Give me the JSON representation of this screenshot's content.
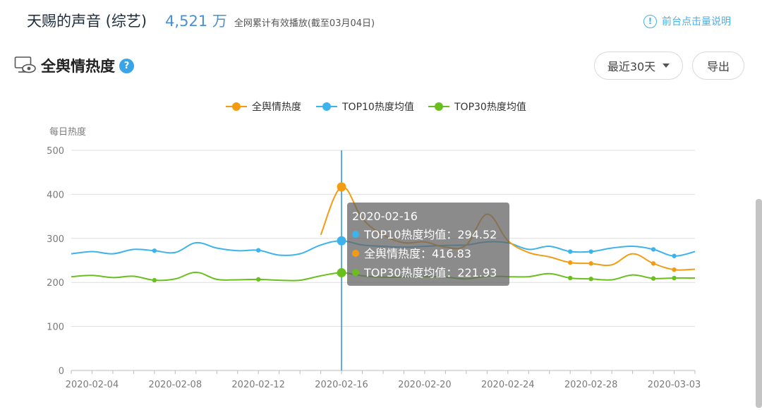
{
  "header": {
    "show_title": "天赐的声音 (综艺)",
    "play_count": "4,521 万",
    "play_note": "全网累计有效播放(截至03月04日)",
    "help_label": "前台点击量说明",
    "help_icon": "info-circle-icon"
  },
  "section": {
    "title": "全舆情热度",
    "icon": "monitor-eye-icon",
    "help_icon": "question-icon"
  },
  "controls": {
    "range_label": "最近30天",
    "export_label": "导出"
  },
  "chart_data": {
    "type": "line",
    "ylabel": "每日热度",
    "ylim": [
      0,
      500
    ],
    "yticks": [
      0,
      100,
      200,
      300,
      400,
      500
    ],
    "xlim": [
      "2020-02-03",
      "2020-03-04"
    ],
    "xtick_labels": [
      "2020-02-04",
      "2020-02-08",
      "2020-02-12",
      "2020-02-16",
      "2020-02-20",
      "2020-02-24",
      "2020-02-28",
      "2020-03-03"
    ],
    "grid": true,
    "legend_position": "top-center",
    "series": [
      {
        "name": "全舆情热度",
        "color": "#f39c12",
        "points": [
          [
            "2020-02-15",
            308
          ],
          [
            "2020-02-16",
            416.83
          ],
          [
            "2020-02-17",
            345
          ],
          [
            "2020-02-18",
            308
          ],
          [
            "2020-02-19",
            290
          ],
          [
            "2020-02-20",
            292
          ],
          [
            "2020-02-21",
            280
          ],
          [
            "2020-02-22",
            285
          ],
          [
            "2020-02-23",
            355
          ],
          [
            "2020-02-24",
            295
          ],
          [
            "2020-02-25",
            268
          ],
          [
            "2020-02-26",
            258
          ],
          [
            "2020-02-27",
            245
          ],
          [
            "2020-02-28",
            243
          ],
          [
            "2020-02-29",
            240
          ],
          [
            "2020-03-01",
            265
          ],
          [
            "2020-03-02",
            243
          ],
          [
            "2020-03-03",
            229
          ],
          [
            "2020-03-04",
            230
          ]
        ]
      },
      {
        "name": "TOP10热度均值",
        "color": "#3db3ee",
        "points": [
          [
            "2020-02-03",
            265
          ],
          [
            "2020-02-04",
            270
          ],
          [
            "2020-02-05",
            265
          ],
          [
            "2020-02-06",
            275
          ],
          [
            "2020-02-07",
            272
          ],
          [
            "2020-02-08",
            268
          ],
          [
            "2020-02-09",
            290
          ],
          [
            "2020-02-10",
            278
          ],
          [
            "2020-02-11",
            272
          ],
          [
            "2020-02-12",
            273
          ],
          [
            "2020-02-13",
            262
          ],
          [
            "2020-02-14",
            265
          ],
          [
            "2020-02-15",
            285
          ],
          [
            "2020-02-16",
            294.52
          ],
          [
            "2020-02-17",
            285
          ],
          [
            "2020-02-18",
            282
          ],
          [
            "2020-02-19",
            280
          ],
          [
            "2020-02-20",
            282
          ],
          [
            "2020-02-21",
            284
          ],
          [
            "2020-02-22",
            285
          ],
          [
            "2020-02-23",
            292
          ],
          [
            "2020-02-24",
            290
          ],
          [
            "2020-02-25",
            275
          ],
          [
            "2020-02-26",
            282
          ],
          [
            "2020-02-27",
            270
          ],
          [
            "2020-02-28",
            270
          ],
          [
            "2020-02-29",
            278
          ],
          [
            "2020-03-01",
            282
          ],
          [
            "2020-03-02",
            275
          ],
          [
            "2020-03-03",
            260
          ],
          [
            "2020-03-04",
            270
          ]
        ]
      },
      {
        "name": "TOP30热度均值",
        "color": "#6abf1e",
        "points": [
          [
            "2020-02-03",
            213
          ],
          [
            "2020-02-04",
            216
          ],
          [
            "2020-02-05",
            211
          ],
          [
            "2020-02-06",
            214
          ],
          [
            "2020-02-07",
            205
          ],
          [
            "2020-02-08",
            208
          ],
          [
            "2020-02-09",
            223
          ],
          [
            "2020-02-10",
            207
          ],
          [
            "2020-02-11",
            206
          ],
          [
            "2020-02-12",
            207
          ],
          [
            "2020-02-13",
            205
          ],
          [
            "2020-02-14",
            205
          ],
          [
            "2020-02-15",
            215
          ],
          [
            "2020-02-16",
            221.93
          ],
          [
            "2020-02-17",
            215
          ],
          [
            "2020-02-18",
            212
          ],
          [
            "2020-02-19",
            212
          ],
          [
            "2020-02-20",
            213
          ],
          [
            "2020-02-21",
            212
          ],
          [
            "2020-02-22",
            208
          ],
          [
            "2020-02-23",
            214
          ],
          [
            "2020-02-24",
            213
          ],
          [
            "2020-02-25",
            213
          ],
          [
            "2020-02-26",
            220
          ],
          [
            "2020-02-27",
            210
          ],
          [
            "2020-02-28",
            208
          ],
          [
            "2020-02-29",
            206
          ],
          [
            "2020-03-01",
            217
          ],
          [
            "2020-03-02",
            209
          ],
          [
            "2020-03-03",
            210
          ],
          [
            "2020-03-04",
            210
          ]
        ]
      }
    ],
    "tooltip": {
      "date": "2020-02-16",
      "rows": [
        {
          "label": "TOP10热度均值：294.52",
          "color": "#3db3ee"
        },
        {
          "label": "全舆情热度：416.83",
          "color": "#f39c12"
        },
        {
          "label": "TOP30热度均值：221.93",
          "color": "#6abf1e"
        }
      ]
    }
  }
}
